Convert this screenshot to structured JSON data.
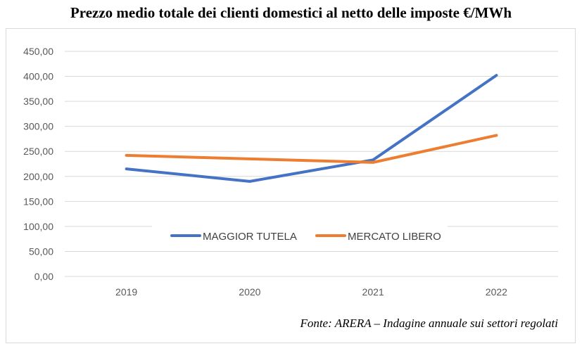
{
  "chart_data": {
    "type": "line",
    "title": "Prezzo medio totale dei clienti domestici al netto delle imposte €/MWh",
    "categories": [
      "2019",
      "2020",
      "2021",
      "2022"
    ],
    "series": [
      {
        "name": "MAGGIOR TUTELA",
        "values": [
          215,
          190,
          233,
          402
        ],
        "color": "#4472c4"
      },
      {
        "name": "MERCATO LIBERO",
        "values": [
          242,
          235,
          228,
          282
        ],
        "color": "#ed7d31"
      }
    ],
    "ylim": [
      0,
      450
    ],
    "ystep": 50,
    "ytick_labels": [
      "0,00",
      "50,00",
      "100,00",
      "150,00",
      "200,00",
      "250,00",
      "300,00",
      "350,00",
      "400,00",
      "450,00"
    ],
    "grid": true,
    "legend_position": "inside-bottom-center"
  },
  "source": "Fonte: ARERA – Indagine annuale sui settori regolati"
}
